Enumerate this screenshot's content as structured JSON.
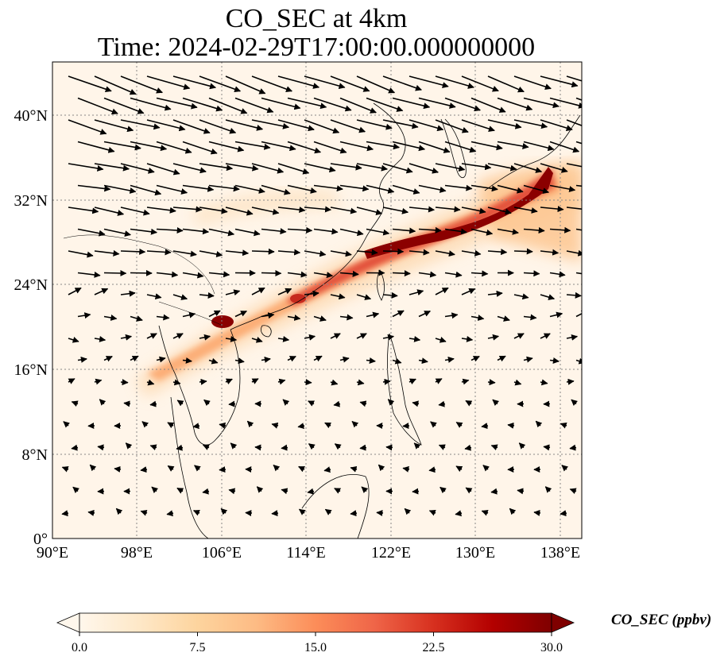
{
  "title": {
    "line1": "CO_SEC at 4km",
    "line2": "Time: 2024-02-29T17:00:00.000000000"
  },
  "map": {
    "x_ticks": [
      "90°E",
      "98°E",
      "106°E",
      "114°E",
      "122°E",
      "130°E",
      "138°E"
    ],
    "y_ticks": [
      "40°N",
      "32°N",
      "24°N",
      "16°N",
      "8°N",
      "0°"
    ],
    "lon_range": [
      90,
      140
    ],
    "lat_range": [
      0,
      45
    ],
    "gridlines": true,
    "plume_color_max": "#8b0000",
    "background_color": "#fff5e9"
  },
  "colorbar": {
    "label": "CO_SEC (ppbv)",
    "ticks": [
      "0.0",
      "7.5",
      "15.0",
      "22.5",
      "30.0"
    ],
    "range": [
      0,
      30
    ],
    "colormap": [
      "#fff7ec",
      "#fee8c8",
      "#fdd49e",
      "#fdbb84",
      "#fc8d59",
      "#ef6548",
      "#d7301f",
      "#b30000",
      "#7f0000"
    ],
    "extend": "both"
  }
}
